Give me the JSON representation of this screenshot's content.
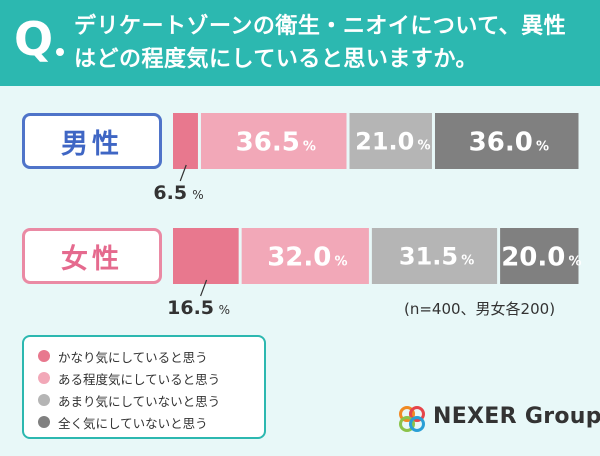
{
  "header": {
    "q_mark": "Q",
    "question_lines": [
      "デリケートゾーンの衛生・ニオイについて、異性",
      "はどの程度気にしていると思いますか。"
    ]
  },
  "colors": {
    "teal": "#2cb8b0",
    "series": [
      "#e8788e",
      "#f2a8b8",
      "#b5b5b5",
      "#808080"
    ],
    "male_accent": "#4f74c9",
    "female_accent": "#ea8aa4"
  },
  "chart_data": {
    "type": "bar",
    "orientation": "horizontal-stacked-100",
    "categories": [
      "男性",
      "女性"
    ],
    "series": [
      {
        "name": "かなり気にしていると思う",
        "values": [
          6.5,
          16.5
        ]
      },
      {
        "name": "ある程度気にしていると思う",
        "values": [
          36.5,
          32.0
        ]
      },
      {
        "name": "あまり気にしていないと思う",
        "values": [
          21.0,
          31.5
        ]
      },
      {
        "name": "全く気にしていないと思う",
        "values": [
          36.0,
          20.0
        ]
      }
    ],
    "unit": "%",
    "value_labels": [
      [
        "6.5",
        "36.5",
        "21.0",
        "36.0"
      ],
      [
        "16.5",
        "32.0",
        "31.5",
        "20.0"
      ]
    ],
    "note": "(n=400、男女各200)"
  },
  "legend": {
    "items": [
      {
        "label": "かなり気にしていると思う",
        "color": "#e8788e"
      },
      {
        "label": "ある程度気にしていると思う",
        "color": "#f2a8b8"
      },
      {
        "label": "あまり気にしていないと思う",
        "color": "#b5b5b5"
      },
      {
        "label": "全く気にしていないと思う",
        "color": "#808080"
      }
    ]
  },
  "logo": {
    "text": "NEXER Group",
    "icon": "nexer-rings-logo"
  }
}
